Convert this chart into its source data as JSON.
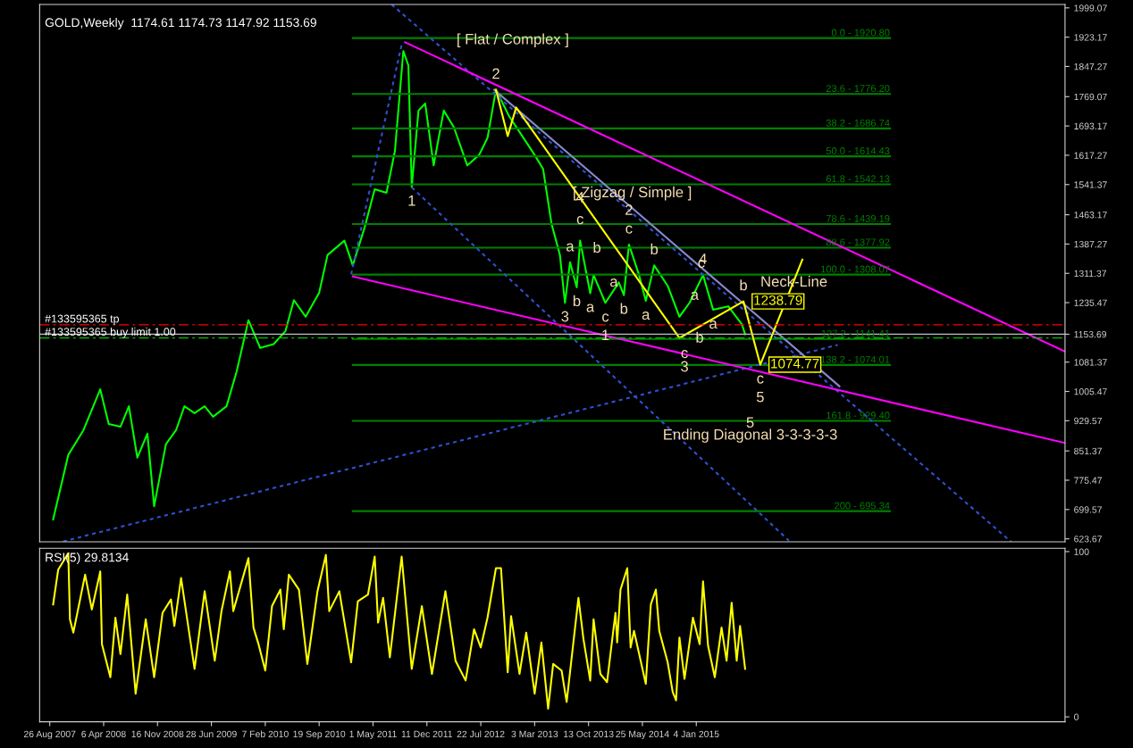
{
  "chart_data": [
    {
      "type": "line",
      "title": "GOLD,Weekly  1174.61 1174.73 1147.92 1153.69",
      "xlim": [
        "2007-07-15",
        "2019-03-17"
      ],
      "ylim": [
        616,
        2008
      ],
      "yticks": [
        623.67,
        699.57,
        775.47,
        851.37,
        929.57,
        1005.47,
        1081.37,
        1153.69,
        1235.47,
        1311.37,
        1387.27,
        1463.17,
        1541.37,
        1617.27,
        1693.17,
        1769.07,
        1847.27,
        1923.17,
        1999.07
      ],
      "tick_labels": "y",
      "ref_lines": [
        {
          "axis": "y",
          "value": 1178,
          "label": "#133595365 tp",
          "color": "#ff0000",
          "line_style": "dashed"
        },
        {
          "axis": "y",
          "value": 1144,
          "label": "#133595365 buy limit 1.00",
          "color": "#00c000",
          "line_style": "dashed"
        },
        {
          "axis": "y",
          "value": 1153.69,
          "color": "#c0c0c0",
          "line_style": "solid"
        }
      ],
      "series": [
        {
          "color": "#00ff00",
          "x": [
            "2007-09-09",
            "2007-11-11",
            "2008-01-13",
            "2008-03-23",
            "2008-04-27",
            "2008-06-15",
            "2008-07-20",
            "2008-08-24",
            "2008-10-05",
            "2008-11-02",
            "2008-12-21",
            "2009-02-01",
            "2009-03-08",
            "2009-04-19",
            "2009-05-31",
            "2009-07-05",
            "2009-08-30",
            "2009-10-11",
            "2009-11-29",
            "2010-01-17",
            "2010-03-14",
            "2010-05-02",
            "2010-06-06",
            "2010-07-25",
            "2010-09-19",
            "2010-10-24",
            "2011-01-02",
            "2011-02-06",
            "2011-03-27",
            "2011-05-08",
            "2011-06-26",
            "2011-07-31",
            "2011-09-04",
            "2011-09-25",
            "2011-10-09",
            "2011-11-06",
            "2011-12-04",
            "2012-01-08",
            "2012-02-19",
            "2012-04-01",
            "2012-05-27",
            "2012-07-15",
            "2012-08-19",
            "2012-09-23",
            "2012-11-18",
            "2013-01-06",
            "2013-03-03",
            "2013-04-07",
            "2013-05-12",
            "2013-06-16",
            "2013-07-07",
            "2013-07-28",
            "2013-08-25",
            "2013-09-08",
            "2013-10-20",
            "2013-11-03",
            "2013-12-22",
            "2014-02-16",
            "2014-03-09",
            "2014-03-30",
            "2014-05-11",
            "2014-06-08",
            "2014-07-13",
            "2014-09-07",
            "2014-10-26",
            "2014-12-07",
            "2015-02-01",
            "2015-03-15",
            "2015-05-17",
            "2015-07-12",
            "2015-07-26"
          ],
          "values": [
            674,
            841,
            905,
            1011,
            921,
            914,
            967,
            834,
            896,
            708,
            869,
            905,
            967,
            949,
            967,
            940,
            967,
            1057,
            1190,
            1118,
            1128,
            1162,
            1242,
            1199,
            1261,
            1359,
            1396,
            1332,
            1430,
            1529,
            1520,
            1628,
            1887,
            1850,
            1535,
            1733,
            1751,
            1591,
            1733,
            1690,
            1591,
            1618,
            1662,
            1787,
            1717,
            1671,
            1618,
            1582,
            1440,
            1359,
            1235,
            1340,
            1275,
            1396,
            1260,
            1307,
            1235,
            1288,
            1255,
            1386,
            1307,
            1240,
            1332,
            1279,
            1199,
            1235,
            1307,
            1217,
            1226,
            1180,
            1153.69
          ]
        },
        {
          "name": "0.0 - 1920.80",
          "color": "#008000",
          "x": [
            "2011-02-06",
            "2017-03-19"
          ],
          "values": [
            1920.8,
            1920.8
          ]
        },
        {
          "name": "23.6 - 1776.20",
          "color": "#008000",
          "x": [
            "2011-02-06",
            "2017-03-19"
          ],
          "values": [
            1776.2,
            1776.2
          ]
        },
        {
          "name": "38.2 - 1686.74",
          "color": "#008000",
          "x": [
            "2011-02-06",
            "2017-03-19"
          ],
          "values": [
            1686.74,
            1686.74
          ]
        },
        {
          "name": "50.0 - 1614.43",
          "color": "#008000",
          "x": [
            "2011-02-06",
            "2017-03-19"
          ],
          "values": [
            1614.43,
            1614.43
          ]
        },
        {
          "name": "61.8 - 1542.13",
          "color": "#008000",
          "x": [
            "2011-02-06",
            "2017-03-19"
          ],
          "values": [
            1542.13,
            1542.13
          ]
        },
        {
          "name": "78.6 - 1439.19",
          "color": "#008000",
          "x": [
            "2011-02-06",
            "2017-03-19"
          ],
          "values": [
            1439.19,
            1439.19
          ]
        },
        {
          "name": "88.6 - 1377.92",
          "color": "#008000",
          "x": [
            "2011-02-06",
            "2017-03-19"
          ],
          "values": [
            1377.92,
            1377.92
          ]
        },
        {
          "name": "100.0 - 1308.07",
          "color": "#008000",
          "x": [
            "2011-02-06",
            "2017-03-19"
          ],
          "values": [
            1308.07,
            1308.07
          ]
        },
        {
          "name": "127.2 - 1141.41",
          "color": "#008000",
          "x": [
            "2011-02-06",
            "2017-03-19"
          ],
          "values": [
            1141.41,
            1141.41
          ]
        },
        {
          "name": "138.2 - 1074.01",
          "color": "#008000",
          "x": [
            "2011-02-06",
            "2017-03-19"
          ],
          "values": [
            1074.01,
            1074.01
          ]
        },
        {
          "name": "161.8 - 929.40",
          "color": "#008000",
          "x": [
            "2011-02-06",
            "2015-08-16",
            "2017-03-19"
          ],
          "values": [
            929.4,
            929.4,
            929.4
          ]
        },
        {
          "name": "200 - 695.34",
          "color": "#008000",
          "x": [
            "2011-02-06",
            "2017-03-19"
          ],
          "values": [
            695.34,
            695.34
          ]
        },
        {
          "color": "#3050d0",
          "line_style": "dotted",
          "x": [
            "2007-10-21",
            "2016-08-14"
          ],
          "values": [
            617,
            1126
          ]
        },
        {
          "color": "#3050d0",
          "line_style": "dotted",
          "x": [
            "2011-07-17",
            "2018-08-05"
          ],
          "values": [
            2008,
            616
          ]
        },
        {
          "color": "#3050d0",
          "line_style": "dotted",
          "x": [
            "2011-10-09",
            "2016-01-24"
          ],
          "values": [
            1534,
            619
          ]
        },
        {
          "color": "#3050d0",
          "line_style": "dotted",
          "x": [
            "2011-01-30",
            "2011-08-28"
          ],
          "values": [
            1309,
            1904
          ]
        },
        {
          "color": "#ff00ff",
          "x": [
            "2011-09-11",
            "2019-03-17"
          ],
          "values": [
            1910,
            1109
          ]
        },
        {
          "color": "#ff00ff",
          "x": [
            "2011-02-06",
            "2019-03-17"
          ],
          "values": [
            1303,
            872
          ]
        },
        {
          "color": "#8888cc",
          "x": [
            "2012-09-16",
            "2014-04-13",
            "2016-08-21"
          ],
          "values": [
            1787,
            1480,
            1019
          ]
        },
        {
          "color": "#ffff00",
          "x": [
            "2012-09-23",
            "2012-11-11",
            "2012-12-16",
            "2014-10-26",
            "2015-07-19",
            "2015-09-27",
            "2016-03-20"
          ],
          "values": [
            1787,
            1667,
            1741,
            1144,
            1238.79,
            1074.77,
            1347
          ],
          "value_labels": [
            null,
            null,
            null,
            null,
            "1238.79",
            "1074.77",
            null
          ]
        }
      ],
      "annotations": [
        {
          "text": "1",
          "x": "2011-10-09",
          "y": 1535
        },
        {
          "text": "2",
          "x": "2012-09-23",
          "y": 1787
        },
        {
          "text": "3",
          "x": "2013-07-07",
          "y": 1235
        },
        {
          "text": "4",
          "x": "2013-09-08",
          "y": 1505
        },
        {
          "text": "5",
          "x": "2015-08-16",
          "y": 922
        },
        {
          "text": "1",
          "x": "2013-12-22",
          "y": 1235
        },
        {
          "text": "2",
          "x": "2014-03-30",
          "y": 1386
        },
        {
          "text": "3",
          "x": "2014-11-16",
          "y": 1067
        },
        {
          "text": "4",
          "x": "2015-02-01",
          "y": 1307
        },
        {
          "text": "5",
          "x": "2015-09-27",
          "y": 1074.77
        },
        {
          "text": "c",
          "x": "2013-09-08",
          "y": 1449
        },
        {
          "text": "a",
          "x": "2013-07-28",
          "y": 1340
        },
        {
          "text": "b",
          "x": "2013-11-17",
          "y": 1375
        },
        {
          "text": "b",
          "x": "2013-08-25",
          "y": 1275
        },
        {
          "text": "a",
          "x": "2013-10-20",
          "y": 1260
        },
        {
          "text": "c",
          "x": "2013-12-22",
          "y": 1235
        },
        {
          "text": "a",
          "x": "2014-01-26",
          "y": 1287
        },
        {
          "text": "b",
          "x": "2014-03-09",
          "y": 1255
        },
        {
          "text": "c",
          "x": "2014-03-30",
          "y": 1386
        },
        {
          "text": "a",
          "x": "2014-06-08",
          "y": 1240
        },
        {
          "text": "b",
          "x": "2014-07-13",
          "y": 1332
        },
        {
          "text": "c",
          "x": "2015-01-25",
          "y": 1336
        },
        {
          "text": "a",
          "x": "2014-12-28",
          "y": 1253
        },
        {
          "text": "b",
          "x": "2015-01-18",
          "y": 1142
        },
        {
          "text": "c",
          "x": "2014-11-16",
          "y": 1102
        },
        {
          "text": "a",
          "x": "2015-03-15",
          "y": 1217
        },
        {
          "text": "c",
          "x": "2015-09-27",
          "y": 1074.77
        },
        {
          "text": "b",
          "x": "2015-07-19",
          "y": 1238.79
        },
        {
          "text": "[ Flat / Complex ]",
          "x": "2012-12-02",
          "y": 1915
        },
        {
          "text": "[ Zigzag / Simple ]",
          "x": "2014-04-13",
          "y": 1480
        },
        {
          "text": "Ending Diagonal 3-3-3-3-3",
          "x": "2015-08-16",
          "y": 929.4
        },
        {
          "text": "Neck-Line",
          "x": "2016-02-14",
          "y": 1287
        }
      ]
    },
    {
      "type": "line",
      "title": "RSI(5) 29.8134",
      "xlim": [
        "2007-07-15",
        "2019-03-17"
      ],
      "ylim": [
        -3,
        102
      ],
      "xticks": [
        {
          "value": "2007-08-26",
          "label": "26 Aug 2007"
        },
        {
          "value": "2008-04-06",
          "label": "6 Apr 2008"
        },
        {
          "value": "2008-11-16",
          "label": "16 Nov 2008"
        },
        {
          "value": "2009-06-28",
          "label": "28 Jun 2009"
        },
        {
          "value": "2010-02-07",
          "label": "7 Feb 2010"
        },
        {
          "value": "2010-09-19",
          "label": "19 Sep 2010"
        },
        {
          "value": "2011-05-01",
          "label": "1 May 2011"
        },
        {
          "value": "2011-12-11",
          "label": "11 Dec 2011"
        },
        {
          "value": "2012-07-22",
          "label": "22 Jul 2012"
        },
        {
          "value": "2013-03-03",
          "label": "3 Mar 2013"
        },
        {
          "value": "2013-10-13",
          "label": "13 Oct 2013"
        },
        {
          "value": "2014-05-25",
          "label": "25 May 2014"
        },
        {
          "value": "2015-01-04",
          "label": "4 Jan 2015"
        }
      ],
      "yticks": [
        0,
        100
      ],
      "series": [
        {
          "color": "#ffff00",
          "x": [
            "2007-09-09",
            "2007-09-30",
            "2007-11-11",
            "2007-11-18",
            "2007-12-02",
            "2008-01-20",
            "2008-02-17",
            "2008-03-23",
            "2008-03-30",
            "2008-05-04",
            "2008-05-25",
            "2008-06-15",
            "2008-07-13",
            "2008-08-17",
            "2008-09-28",
            "2008-11-02",
            "2008-12-07",
            "2009-01-11",
            "2009-01-25",
            "2009-02-22",
            "2009-04-19",
            "2009-05-31",
            "2009-07-12",
            "2009-08-09",
            "2009-09-13",
            "2009-09-27",
            "2009-11-29",
            "2009-12-20",
            "2010-01-10",
            "2010-02-07",
            "2010-03-07",
            "2010-04-11",
            "2010-04-25",
            "2010-05-16",
            "2010-06-27",
            "2010-08-01",
            "2010-09-12",
            "2010-10-17",
            "2010-10-31",
            "2010-12-12",
            "2011-01-30",
            "2011-02-27",
            "2011-04-10",
            "2011-05-08",
            "2011-05-22",
            "2011-06-12",
            "2011-07-10",
            "2011-08-28",
            "2011-10-09",
            "2011-11-20",
            "2012-01-01",
            "2012-02-26",
            "2012-04-08",
            "2012-05-20",
            "2012-06-24",
            "2012-07-22",
            "2012-08-19",
            "2012-09-23",
            "2012-10-14",
            "2012-11-11",
            "2012-11-25",
            "2012-12-30",
            "2013-01-27",
            "2013-03-03",
            "2013-03-31",
            "2013-04-28",
            "2013-05-19",
            "2013-06-23",
            "2013-07-14",
            "2013-09-01",
            "2013-09-22",
            "2013-10-20",
            "2013-11-03",
            "2013-12-01",
            "2013-12-29",
            "2014-02-02",
            "2014-02-09",
            "2014-02-23",
            "2014-03-23",
            "2014-04-06",
            "2014-04-20",
            "2014-06-08",
            "2014-06-29",
            "2014-07-20",
            "2014-08-03",
            "2014-09-07",
            "2014-09-28",
            "2014-10-12",
            "2014-10-26",
            "2014-11-16",
            "2014-12-21",
            "2015-01-18",
            "2015-02-01",
            "2015-02-22",
            "2015-03-22",
            "2015-04-19",
            "2015-05-10",
            "2015-05-31",
            "2015-06-21",
            "2015-07-05",
            "2015-07-26"
          ],
          "values": [
            68,
            89,
            99,
            59,
            51,
            86,
            65,
            88,
            44,
            24,
            60,
            38,
            74,
            14,
            59,
            24,
            63,
            71,
            55,
            84,
            29,
            76,
            34,
            64,
            88,
            64,
            96,
            54,
            44,
            28,
            67,
            77,
            53,
            86,
            77,
            32,
            76,
            98,
            64,
            76,
            33,
            70,
            74,
            97,
            57,
            72,
            36,
            97,
            29,
            67,
            26,
            76,
            34,
            22,
            53,
            42,
            60,
            90,
            90,
            27,
            61,
            26,
            51,
            14,
            45,
            5,
            32,
            28,
            9,
            72,
            47,
            22,
            59,
            26,
            21,
            63,
            45,
            77,
            90,
            42,
            52,
            20,
            68,
            77,
            52,
            33,
            15,
            10,
            48,
            23,
            60,
            44,
            82,
            43,
            24,
            54,
            34,
            69,
            34,
            55,
            29
          ]
        }
      ]
    }
  ]
}
